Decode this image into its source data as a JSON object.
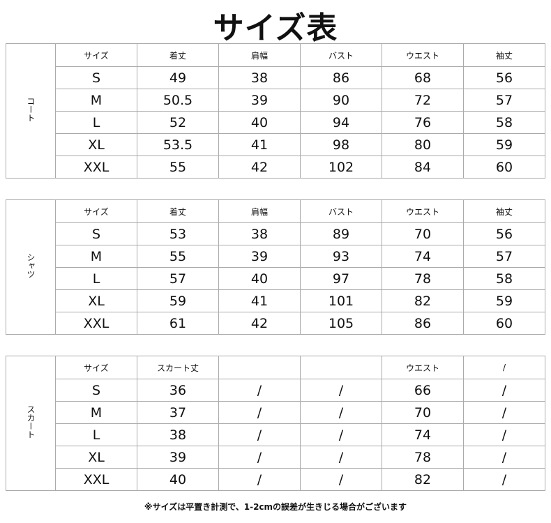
{
  "title": "サイズ表",
  "tables": [
    {
      "category": "コート",
      "headers": [
        "サイズ",
        "着丈",
        "肩幅",
        "バスト",
        "ウエスト",
        "袖丈"
      ],
      "rows": [
        [
          "S",
          "49",
          "38",
          "86",
          "68",
          "56"
        ],
        [
          "M",
          "50.5",
          "39",
          "90",
          "72",
          "57"
        ],
        [
          "L",
          "52",
          "40",
          "94",
          "76",
          "58"
        ],
        [
          "XL",
          "53.5",
          "41",
          "98",
          "80",
          "59"
        ],
        [
          "XXL",
          "55",
          "42",
          "102",
          "84",
          "60"
        ]
      ]
    },
    {
      "category": "シャツ",
      "headers": [
        "サイズ",
        "着丈",
        "肩幅",
        "バスト",
        "ウエスト",
        "袖丈"
      ],
      "rows": [
        [
          "S",
          "53",
          "38",
          "89",
          "70",
          "56"
        ],
        [
          "M",
          "55",
          "39",
          "93",
          "74",
          "57"
        ],
        [
          "L",
          "57",
          "40",
          "97",
          "78",
          "58"
        ],
        [
          "XL",
          "59",
          "41",
          "101",
          "82",
          "59"
        ],
        [
          "XXL",
          "61",
          "42",
          "105",
          "86",
          "60"
        ]
      ]
    },
    {
      "category": "スカート",
      "headers": [
        "サイズ",
        "スカート丈",
        "",
        "",
        "ウエスト",
        "/"
      ],
      "rows": [
        [
          "S",
          "36",
          "/",
          "/",
          "66",
          "/"
        ],
        [
          "M",
          "37",
          "/",
          "/",
          "70",
          "/"
        ],
        [
          "L",
          "38",
          "/",
          "/",
          "74",
          "/"
        ],
        [
          "XL",
          "39",
          "/",
          "/",
          "78",
          "/"
        ],
        [
          "XXL",
          "40",
          "/",
          "/",
          "82",
          "/"
        ]
      ]
    }
  ],
  "note": "※サイズは平置き計測で、1-2cmの誤差が生きじる場合がございます"
}
